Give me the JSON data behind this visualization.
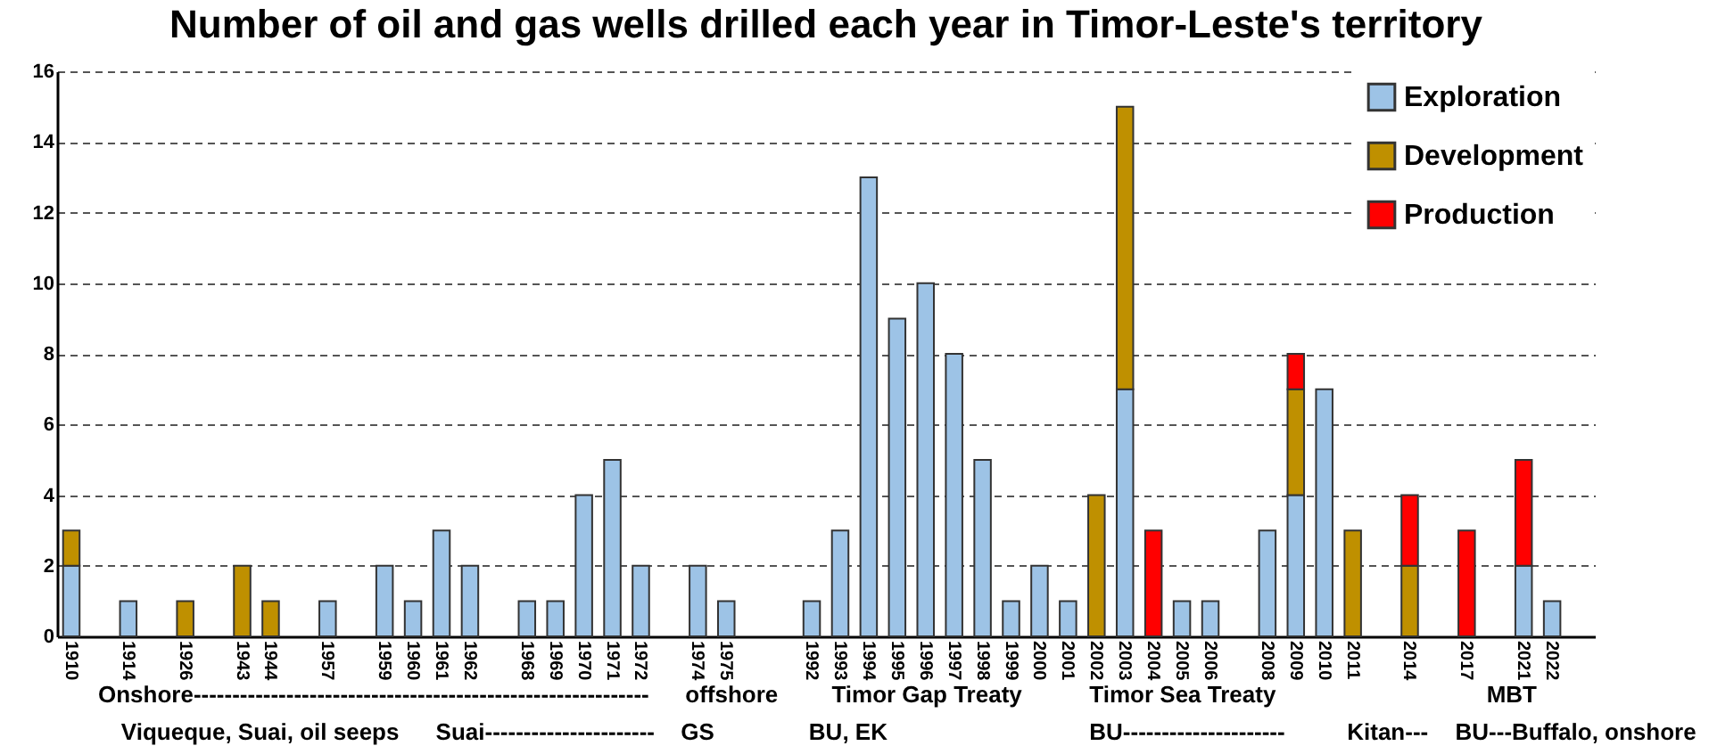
{
  "chart_data": {
    "type": "bar",
    "stacked": true,
    "title": "Number of oil and gas wells drilled each year in Timor-Leste's territory",
    "categories": [
      "1910",
      null,
      "1914",
      null,
      "1926",
      null,
      "1943",
      "1944",
      null,
      "1957",
      null,
      "1959",
      "1960",
      "1961",
      "1962",
      null,
      "1968",
      "1969",
      "1970",
      "1971",
      "1972",
      null,
      "1974",
      "1975",
      null,
      null,
      "1992",
      "1993",
      "1994",
      "1995",
      "1996",
      "1997",
      "1998",
      "1999",
      "2000",
      "2001",
      "2002",
      "2003",
      "2004",
      "2005",
      "2006",
      null,
      "2008",
      "2009",
      "2010",
      "2011",
      null,
      "2014",
      null,
      "2017",
      null,
      "2021",
      "2022",
      null
    ],
    "series": [
      {
        "name": "Exploration",
        "color": "#9dc3e6",
        "values": [
          2,
          null,
          1,
          null,
          null,
          null,
          null,
          null,
          null,
          1,
          null,
          2,
          1,
          3,
          2,
          null,
          1,
          1,
          4,
          5,
          2,
          null,
          2,
          1,
          null,
          null,
          1,
          3,
          13,
          9,
          10,
          8,
          5,
          1,
          2,
          1,
          null,
          7,
          null,
          1,
          1,
          null,
          3,
          4,
          7,
          null,
          null,
          null,
          null,
          null,
          null,
          2,
          1,
          null
        ]
      },
      {
        "name": "Development",
        "color": "#bf9000",
        "values": [
          1,
          null,
          null,
          null,
          1,
          null,
          2,
          1,
          null,
          null,
          null,
          null,
          null,
          null,
          null,
          null,
          null,
          null,
          null,
          null,
          null,
          null,
          null,
          null,
          null,
          null,
          null,
          null,
          null,
          null,
          null,
          null,
          null,
          null,
          null,
          null,
          4,
          8,
          null,
          null,
          null,
          null,
          null,
          3,
          null,
          3,
          null,
          2,
          null,
          null,
          null,
          null,
          null,
          null
        ]
      },
      {
        "name": "Production",
        "color": "#ff0000",
        "values": [
          null,
          null,
          null,
          null,
          null,
          null,
          null,
          null,
          null,
          null,
          null,
          null,
          null,
          null,
          null,
          null,
          null,
          null,
          null,
          null,
          null,
          null,
          null,
          null,
          null,
          null,
          null,
          null,
          null,
          null,
          null,
          null,
          null,
          null,
          null,
          null,
          null,
          null,
          3,
          null,
          null,
          null,
          null,
          1,
          null,
          null,
          null,
          2,
          null,
          3,
          null,
          3,
          null,
          null
        ]
      }
    ],
    "ylim": [
      0,
      16
    ],
    "yticks": [
      0,
      2,
      4,
      6,
      8,
      10,
      12,
      14,
      16
    ],
    "grid": "y",
    "legend": "top right",
    "annotations": [
      "Onshore-----------------------------------------------------------",
      "offshore",
      "Timor Gap Treaty",
      "Timor Sea Treaty",
      "MBT",
      "Viqueque, Suai, oil seeps",
      "Suai----------------------",
      "GS",
      "BU, EK",
      "BU---------------------",
      "Kitan---",
      "BU---Buffalo, onshore"
    ]
  }
}
